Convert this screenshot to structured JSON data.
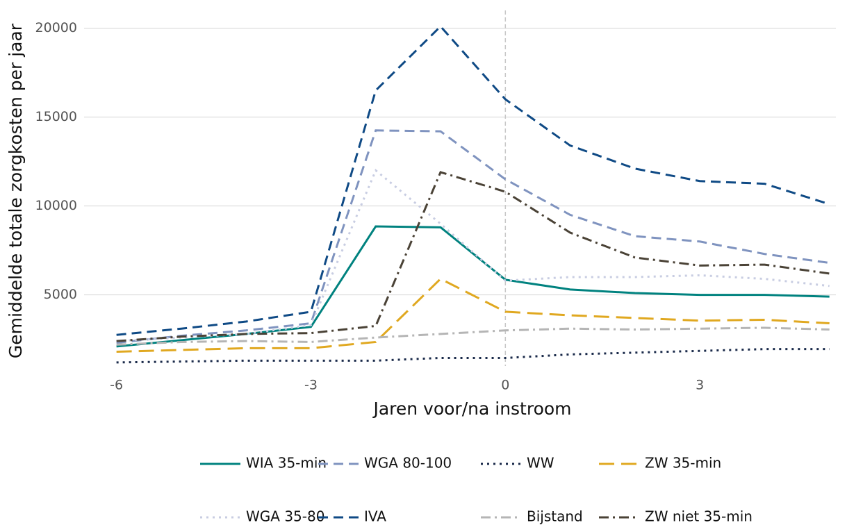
{
  "chart_data": {
    "type": "line",
    "x_label": "Jaren voor/na instroom",
    "y_label": "Gemiddelde totale zorgkosten per jaar",
    "x": [
      -6,
      -5,
      -4,
      -3,
      -2,
      -1,
      0,
      1,
      2,
      3,
      4,
      5
    ],
    "xlim": [
      -6.5,
      5.1
    ],
    "xticks": [
      -6,
      -3,
      0,
      3
    ],
    "ylim": [
      1000,
      21000
    ],
    "yticks": [
      5000,
      10000,
      15000,
      20000
    ],
    "grid": true,
    "vline": 0,
    "legend": "bottom",
    "series": [
      {
        "name": "WIA 35-min",
        "color": "#00827f",
        "linestyle": "solid",
        "values": [
          2100,
          2450,
          2800,
          3200,
          8850,
          8800,
          5850,
          5300,
          5100,
          5000,
          5000,
          4900
        ]
      },
      {
        "name": "WGA 80-100",
        "color": "#7f93bf",
        "linestyle": "dashed",
        "values": [
          2300,
          2700,
          3000,
          3400,
          14250,
          14200,
          11500,
          9500,
          8300,
          8000,
          7300,
          6800
        ]
      },
      {
        "name": "WW",
        "color": "#1a2a4a",
        "linestyle": "dotted",
        "values": [
          1200,
          1250,
          1300,
          1300,
          1300,
          1450,
          1450,
          1650,
          1750,
          1850,
          1950,
          1950
        ]
      },
      {
        "name": "ZW 35-min",
        "color": "#e0a820",
        "linestyle": "longdash",
        "values": [
          1800,
          1900,
          2000,
          2000,
          2350,
          5900,
          4050,
          3850,
          3700,
          3550,
          3600,
          3400
        ]
      },
      {
        "name": "WGA 35-80",
        "color": "#c8cde2",
        "linestyle": "dotted",
        "values": [
          2400,
          2600,
          2800,
          3300,
          12000,
          9000,
          5800,
          6000,
          6000,
          6100,
          5900,
          5500
        ]
      },
      {
        "name": "IVA",
        "color": "#0f4a85",
        "linestyle": "dashed",
        "values": [
          2750,
          3100,
          3500,
          4050,
          16500,
          20100,
          16000,
          13400,
          12100,
          11400,
          11250,
          10100
        ]
      },
      {
        "name": "Bijstand",
        "color": "#b5b5b5",
        "linestyle": "dotdash",
        "values": [
          2200,
          2350,
          2400,
          2350,
          2600,
          2800,
          3000,
          3100,
          3050,
          3100,
          3150,
          3050
        ]
      },
      {
        "name": "ZW niet 35-min",
        "color": "#4a4236",
        "linestyle": "dotdash",
        "values": [
          2400,
          2650,
          2800,
          2850,
          3250,
          11900,
          10800,
          8500,
          7100,
          6650,
          6700,
          6200
        ]
      }
    ]
  }
}
